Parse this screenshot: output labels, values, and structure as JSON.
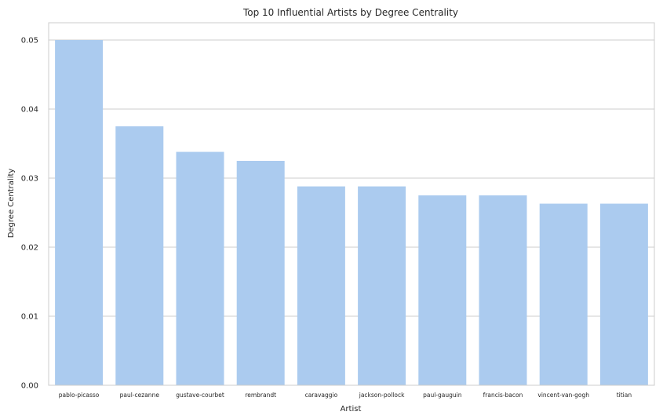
{
  "chart_data": {
    "type": "bar",
    "title": "Top 10 Influential Artists by Degree Centrality",
    "xlabel": "Artist",
    "ylabel": "Degree Centrality",
    "categories": [
      "pablo-picasso",
      "paul-cezanne",
      "gustave-courbet",
      "rembrandt",
      "caravaggio",
      "jackson-pollock",
      "paul-gauguin",
      "francis-bacon",
      "vincent-van-gogh",
      "titian"
    ],
    "values": [
      0.05,
      0.0375,
      0.0338,
      0.0325,
      0.0288,
      0.0288,
      0.0275,
      0.0275,
      0.0263,
      0.0263
    ],
    "ylim": [
      0,
      0.0525
    ],
    "yticks": [
      0.0,
      0.01,
      0.02,
      0.03,
      0.04,
      0.05
    ],
    "ytick_labels": [
      "0.00",
      "0.01",
      "0.02",
      "0.03",
      "0.04",
      "0.05"
    ],
    "grid": true,
    "bar_color": "#abcbef"
  }
}
